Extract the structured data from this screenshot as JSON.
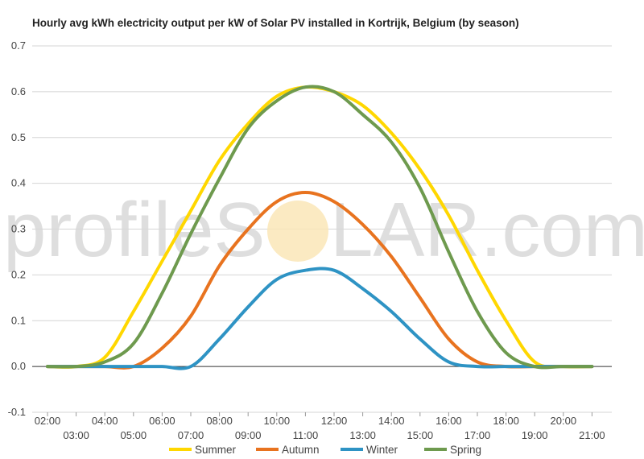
{
  "chart_data": {
    "type": "line",
    "title": "Hourly avg kWh electricity output per kW of Solar PV installed in Kortrijk, Belgium (by season)",
    "xlabel": "",
    "ylabel": "",
    "ylim": [
      -0.1,
      0.7
    ],
    "yticks": [
      "-0.1",
      "0.0",
      "0.1",
      "0.2",
      "0.3",
      "0.4",
      "0.5",
      "0.6",
      "0.7"
    ],
    "categories": [
      "02:00",
      "03:00",
      "04:00",
      "05:00",
      "06:00",
      "07:00",
      "08:00",
      "09:00",
      "10:00",
      "11:00",
      "12:00",
      "13:00",
      "14:00",
      "15:00",
      "16:00",
      "17:00",
      "18:00",
      "19:00",
      "20:00",
      "21:00"
    ],
    "grid": true,
    "legend_position": "bottom",
    "series": [
      {
        "name": "Summer",
        "color": "#ffd700",
        "values": [
          0.0,
          0.0,
          0.02,
          0.12,
          0.23,
          0.34,
          0.45,
          0.53,
          0.59,
          0.61,
          0.6,
          0.57,
          0.51,
          0.43,
          0.33,
          0.21,
          0.1,
          0.01,
          0.0,
          0.0
        ]
      },
      {
        "name": "Autumn",
        "color": "#e8731f",
        "values": [
          0.0,
          0.0,
          0.0,
          0.0,
          0.04,
          0.11,
          0.22,
          0.3,
          0.36,
          0.38,
          0.36,
          0.31,
          0.24,
          0.15,
          0.06,
          0.01,
          0.0,
          0.0,
          0.0,
          0.0
        ]
      },
      {
        "name": "Winter",
        "color": "#2e93c4",
        "values": [
          0.0,
          0.0,
          0.0,
          0.0,
          0.0,
          0.0,
          0.06,
          0.13,
          0.19,
          0.21,
          0.21,
          0.17,
          0.12,
          0.06,
          0.01,
          0.0,
          0.0,
          0.0,
          0.0,
          0.0
        ]
      },
      {
        "name": "Spring",
        "color": "#6e9a4e",
        "values": [
          0.0,
          0.0,
          0.01,
          0.05,
          0.16,
          0.29,
          0.41,
          0.52,
          0.58,
          0.61,
          0.6,
          0.55,
          0.49,
          0.39,
          0.25,
          0.12,
          0.03,
          0.0,
          0.0,
          0.0
        ]
      }
    ]
  },
  "watermark": {
    "left": "profileS",
    "right": "LAR.com"
  }
}
